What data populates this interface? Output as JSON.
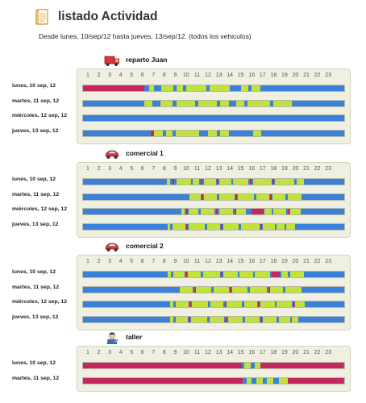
{
  "page": {
    "title": "listado Actividad",
    "subtitle": "Desde lunes, 10/sep/12 hasta jueves, 13/sep/12.  (todos los vehiculos)",
    "title_icon": "document-icon"
  },
  "colors": {
    "idle": "#3b80d9",
    "moving": "#c0e23a",
    "stopped": "#c4265e",
    "panel_bg": "#f0f0e2"
  },
  "hours": [
    "1",
    "2",
    "3",
    "4",
    "5",
    "6",
    "7",
    "8",
    "9",
    "10",
    "11",
    "12",
    "13",
    "14",
    "15",
    "16",
    "17",
    "18",
    "19",
    "20",
    "21",
    "22",
    "23"
  ],
  "vehicles": [
    {
      "name": "reparto Juan",
      "icon": "truck-icon",
      "rows": [
        {
          "label": "lunes, 10 sep, 12",
          "segments": [
            [
              "s",
              0,
              5.65
            ],
            [
              "m",
              6.1,
              6.5
            ],
            [
              "m",
              7.2,
              8.3
            ],
            [
              "m",
              8.6,
              9.2
            ],
            [
              "m",
              9.5,
              11.3
            ],
            [
              "m",
              11.6,
              13.5
            ],
            [
              "m",
              14.5,
              15.2
            ],
            [
              "m",
              15.5,
              16.3
            ]
          ]
        },
        {
          "label": "martes, 11 sep, 12",
          "segments": [
            [
              "m",
              5.6,
              6.4
            ],
            [
              "m",
              7.1,
              8.2
            ],
            [
              "m",
              8.6,
              10.3
            ],
            [
              "m",
              10.6,
              12.3
            ],
            [
              "m",
              12.6,
              13.4
            ],
            [
              "m",
              14.1,
              14.8
            ],
            [
              "m",
              15.1,
              17.2
            ],
            [
              "m",
              17.5,
              19.2
            ]
          ]
        },
        {
          "label": "miércoles, 12 sep, 12",
          "segments": []
        },
        {
          "label": "jueves, 13 sep, 12",
          "segments": [
            [
              "s",
              6.2,
              6.5
            ],
            [
              "m",
              6.5,
              7.3
            ],
            [
              "m",
              7.6,
              8.2
            ],
            [
              "m",
              8.5,
              10.7
            ],
            [
              "m",
              11.5,
              12.3
            ],
            [
              "m",
              12.6,
              13.4
            ],
            [
              "m",
              15.6,
              16.4
            ]
          ]
        }
      ]
    },
    {
      "name": "comercial 1",
      "icon": "car-icon",
      "rows": [
        {
          "label": "lunes, 10 sep, 12",
          "segments": [
            [
              "m",
              7.7,
              8.0
            ],
            [
              "s",
              8.2,
              8.35
            ],
            [
              "m",
              8.6,
              9.9
            ],
            [
              "m",
              10.1,
              10.7
            ],
            [
              "s",
              10.8,
              11.0
            ],
            [
              "m",
              11.1,
              12.2
            ],
            [
              "s",
              12.3,
              12.45
            ],
            [
              "m",
              12.5,
              13.6
            ],
            [
              "m",
              13.8,
              15.2
            ],
            [
              "s",
              15.3,
              15.5
            ],
            [
              "m",
              15.6,
              17.3
            ],
            [
              "s",
              17.4,
              17.55
            ],
            [
              "m",
              17.6,
              19.4
            ],
            [
              "m",
              19.6,
              20.3
            ]
          ]
        },
        {
          "label": "martes, 11 sep, 12",
          "segments": [
            [
              "m",
              9.8,
              10.8
            ],
            [
              "s",
              10.9,
              11.05
            ],
            [
              "m",
              11.1,
              12.3
            ],
            [
              "m",
              12.5,
              13.9
            ],
            [
              "s",
              14.0,
              14.15
            ],
            [
              "m",
              14.2,
              15.7
            ],
            [
              "m",
              15.9,
              17.1
            ],
            [
              "s",
              17.2,
              17.35
            ],
            [
              "m",
              17.4,
              18.6
            ],
            [
              "m",
              18.8,
              20.1
            ]
          ]
        },
        {
          "label": "miércoles, 12 sep, 12",
          "segments": [
            [
              "m",
              9.0,
              9.3
            ],
            [
              "s",
              9.5,
              9.65
            ],
            [
              "m",
              9.7,
              10.6
            ],
            [
              "m",
              10.8,
              12.1
            ],
            [
              "s",
              12.2,
              12.4
            ],
            [
              "m",
              12.5,
              13.8
            ],
            [
              "s",
              13.9,
              14.05
            ],
            [
              "m",
              14.1,
              15.0
            ],
            [
              "s",
              15.5,
              16.6
            ],
            [
              "m",
              16.7,
              17.3
            ],
            [
              "m",
              17.5,
              18.7
            ],
            [
              "s",
              18.8,
              18.95
            ],
            [
              "m",
              19.0,
              20.0
            ]
          ]
        },
        {
          "label": "jueves, 13 sep, 12",
          "segments": [
            [
              "m",
              7.8,
              8.0
            ],
            [
              "m",
              8.2,
              9.4
            ],
            [
              "s",
              9.5,
              9.65
            ],
            [
              "m",
              9.7,
              11.2
            ],
            [
              "m",
              11.4,
              12.6
            ],
            [
              "s",
              12.7,
              12.85
            ],
            [
              "m",
              12.9,
              14.3
            ],
            [
              "m",
              14.5,
              16.2
            ],
            [
              "s",
              16.3,
              16.45
            ],
            [
              "m",
              16.5,
              17.6
            ],
            [
              "m",
              17.8,
              18.5
            ],
            [
              "m",
              18.7,
              19.5
            ]
          ]
        }
      ]
    },
    {
      "name": "comercial 2",
      "icon": "car-icon",
      "rows": [
        {
          "label": "lunes, 10 sep, 12",
          "segments": [
            [
              "m",
              7.8,
              8.1
            ],
            [
              "m",
              8.3,
              9.3
            ],
            [
              "s",
              9.4,
              9.55
            ],
            [
              "m",
              9.6,
              10.8
            ],
            [
              "m",
              11.0,
              12.6
            ],
            [
              "s",
              12.7,
              12.85
            ],
            [
              "m",
              12.9,
              14.2
            ],
            [
              "m",
              14.4,
              15.6
            ],
            [
              "m",
              15.8,
              17.2
            ],
            [
              "s",
              17.3,
              18.1
            ],
            [
              "m",
              18.2,
              18.8
            ],
            [
              "m",
              19.0,
              20.3
            ]
          ]
        },
        {
          "label": "martes, 11 sep, 12",
          "segments": [
            [
              "m",
              8.9,
              10.1
            ],
            [
              "s",
              10.2,
              10.35
            ],
            [
              "m",
              10.4,
              11.8
            ],
            [
              "m",
              12.0,
              13.4
            ],
            [
              "s",
              13.5,
              13.65
            ],
            [
              "m",
              13.7,
              15.1
            ],
            [
              "m",
              15.3,
              16.9
            ],
            [
              "s",
              17.0,
              17.15
            ],
            [
              "m",
              17.2,
              18.4
            ],
            [
              "m",
              18.6,
              20.1
            ]
          ]
        },
        {
          "label": "miércoles, 12 sep, 12",
          "segments": [
            [
              "m",
              8.0,
              8.3
            ],
            [
              "m",
              8.5,
              9.7
            ],
            [
              "s",
              9.8,
              9.95
            ],
            [
              "m",
              10.0,
              11.5
            ],
            [
              "m",
              11.7,
              12.9
            ],
            [
              "s",
              13.0,
              13.15
            ],
            [
              "m",
              13.2,
              14.6
            ],
            [
              "m",
              14.8,
              16.0
            ],
            [
              "s",
              16.1,
              16.25
            ],
            [
              "m",
              16.3,
              17.6
            ],
            [
              "m",
              17.8,
              19.2
            ],
            [
              "s",
              19.3,
              19.45
            ],
            [
              "m",
              19.5,
              20.4
            ]
          ]
        },
        {
          "label": "jueves, 13 sep, 12",
          "segments": [
            [
              "m",
              8.0,
              8.3
            ],
            [
              "m",
              8.5,
              9.6
            ],
            [
              "s",
              9.7,
              9.85
            ],
            [
              "m",
              9.9,
              11.4
            ],
            [
              "m",
              11.6,
              13.0
            ],
            [
              "s",
              13.1,
              13.25
            ],
            [
              "m",
              13.3,
              14.7
            ],
            [
              "m",
              14.9,
              16.2
            ],
            [
              "s",
              16.3,
              16.45
            ],
            [
              "m",
              16.5,
              17.8
            ],
            [
              "m",
              18.0,
              19.0
            ],
            [
              "m",
              19.2,
              19.8
            ]
          ]
        }
      ]
    },
    {
      "name": "taller",
      "icon": "mechanic-icon",
      "rows": [
        {
          "label": "lunes, 10 sep, 12",
          "segments": [
            [
              "s",
              0,
              14.6
            ],
            [
              "m",
              14.8,
              15.4
            ],
            [
              "m",
              15.8,
              16.3
            ],
            [
              "s",
              16.3,
              23.9
            ]
          ]
        },
        {
          "label": "martes, 11 sep, 12",
          "segments": [
            [
              "s",
              0,
              14.7
            ],
            [
              "m",
              15.0,
              15.5
            ],
            [
              "m",
              15.9,
              16.5
            ],
            [
              "m",
              16.9,
              17.5
            ],
            [
              "m",
              18.0,
              18.8
            ],
            [
              "s",
              18.8,
              23.9
            ]
          ]
        }
      ]
    }
  ]
}
